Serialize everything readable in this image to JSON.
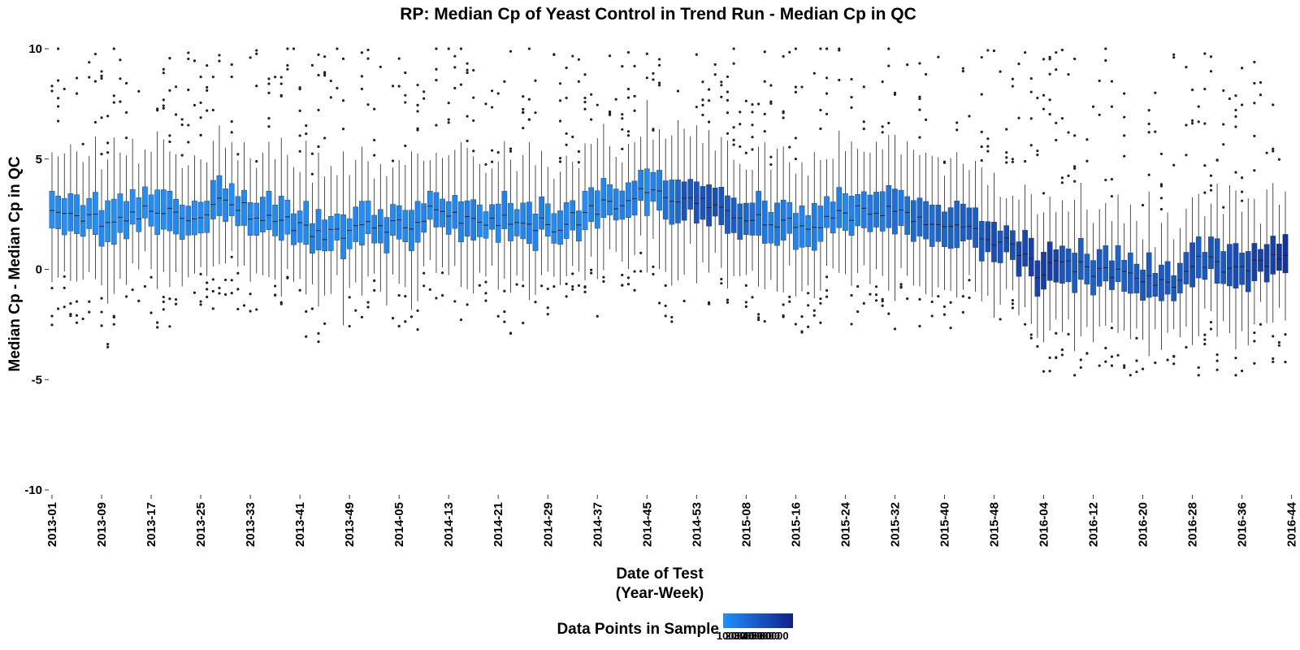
{
  "chart_data": {
    "type": "boxplot",
    "title": "RP: Median Cp of Yeast Control in Trend Run - Median Cp in QC",
    "xlabel_line1": "Date of Test",
    "xlabel_line2": "(Year-Week)",
    "ylabel": "Median Cp - Median Cp in QC",
    "ylim": [
      -10,
      10
    ],
    "y_ticks": [
      10,
      5,
      0,
      -5,
      -10
    ],
    "y_tick_labels": [
      "10",
      "5",
      "0",
      "-5",
      "-10"
    ],
    "x_tick_labels": [
      "2013-01",
      "2013-09",
      "2013-17",
      "2013-25",
      "2013-33",
      "2013-41",
      "2013-49",
      "2014-05",
      "2014-13",
      "2014-21",
      "2014-29",
      "2014-37",
      "2014-45",
      "2014-53",
      "2015-08",
      "2015-16",
      "2015-24",
      "2015-32",
      "2015-40",
      "2015-48",
      "2016-04",
      "2016-12",
      "2016-20",
      "2016-28",
      "2016-36",
      "2016-44"
    ],
    "weeks_per_tick": 8,
    "n_boxes": 200,
    "grid": false,
    "legend": {
      "title": "Data Points in Sample",
      "placement": "bottom",
      "tick_labels": [
        "10000",
        "20000",
        "30000",
        "40000",
        "50000",
        "60000"
      ],
      "color_low": "#1e90ff",
      "color_high": "#10208a"
    },
    "median_trend": {
      "description": "approximate weekly median by time anchor (fraction of weeks elapsed)",
      "anchors": [
        [
          0.0,
          3.0
        ],
        [
          0.04,
          2.1
        ],
        [
          0.08,
          2.8
        ],
        [
          0.11,
          2.4
        ],
        [
          0.14,
          3.1
        ],
        [
          0.17,
          2.4
        ],
        [
          0.2,
          1.9
        ],
        [
          0.22,
          1.4
        ],
        [
          0.26,
          1.9
        ],
        [
          0.29,
          2.0
        ],
        [
          0.31,
          2.9
        ],
        [
          0.34,
          2.2
        ],
        [
          0.38,
          2.1
        ],
        [
          0.41,
          2.0
        ],
        [
          0.43,
          2.4
        ],
        [
          0.46,
          3.1
        ],
        [
          0.49,
          3.5
        ],
        [
          0.52,
          3.2
        ],
        [
          0.55,
          2.6
        ],
        [
          0.58,
          2.3
        ],
        [
          0.61,
          1.8
        ],
        [
          0.63,
          2.2
        ],
        [
          0.66,
          2.8
        ],
        [
          0.69,
          2.4
        ],
        [
          0.72,
          1.7
        ],
        [
          0.75,
          1.8
        ],
        [
          0.78,
          1.0
        ],
        [
          0.8,
          -0.2
        ],
        [
          0.82,
          0.3
        ],
        [
          0.85,
          -0.2
        ],
        [
          0.88,
          -0.3
        ],
        [
          0.91,
          -0.5
        ],
        [
          0.93,
          0.3
        ],
        [
          0.96,
          0.1
        ],
        [
          1.0,
          0.5
        ]
      ]
    },
    "fill_scale": {
      "description": "relative sample size (0 = low, 1 = high) by time anchor",
      "anchors": [
        [
          0.0,
          0.0
        ],
        [
          0.49,
          0.1
        ],
        [
          0.51,
          0.45
        ],
        [
          0.53,
          0.6
        ],
        [
          0.56,
          0.3
        ],
        [
          0.59,
          0.1
        ],
        [
          0.64,
          0.1
        ],
        [
          0.68,
          0.2
        ],
        [
          0.72,
          0.4
        ],
        [
          0.78,
          0.6
        ],
        [
          0.8,
          0.75
        ],
        [
          0.82,
          0.55
        ],
        [
          0.85,
          0.45
        ],
        [
          0.9,
          0.45
        ],
        [
          0.94,
          0.5
        ],
        [
          0.97,
          0.6
        ],
        [
          1.0,
          0.85
        ]
      ]
    }
  }
}
